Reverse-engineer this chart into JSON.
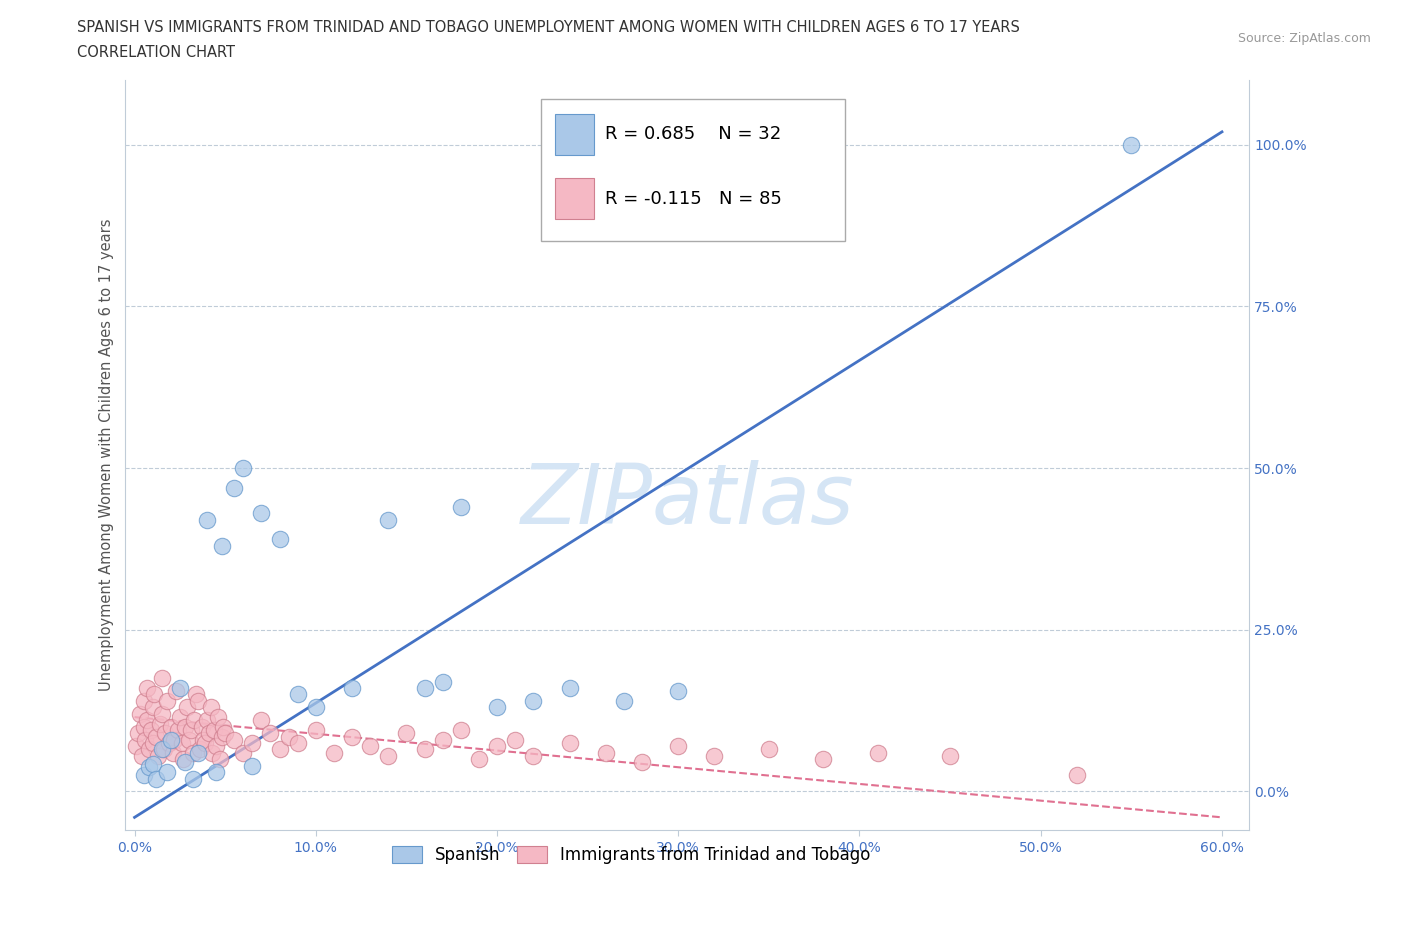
{
  "title_line1": "SPANISH VS IMMIGRANTS FROM TRINIDAD AND TOBAGO UNEMPLOYMENT AMONG WOMEN WITH CHILDREN AGES 6 TO 17 YEARS",
  "title_line2": "CORRELATION CHART",
  "source_text": "Source: ZipAtlas.com",
  "ylabel": "Unemployment Among Women with Children Ages 6 to 17 years",
  "xlim": [
    -0.005,
    0.615
  ],
  "ylim": [
    -0.06,
    1.1
  ],
  "xticks": [
    0.0,
    0.1,
    0.2,
    0.3,
    0.4,
    0.5,
    0.6
  ],
  "xticklabels": [
    "0.0%",
    "10.0%",
    "20.0%",
    "30.0%",
    "40.0%",
    "50.0%",
    "60.0%"
  ],
  "yticks": [
    0.0,
    0.25,
    0.5,
    0.75,
    1.0
  ],
  "yticklabels": [
    "0.0%",
    "25.0%",
    "50.0%",
    "75.0%",
    "100.0%"
  ],
  "blue_R": 0.685,
  "blue_N": 32,
  "pink_R": -0.115,
  "pink_N": 85,
  "blue_color": "#aac8e8",
  "blue_edge_color": "#6699cc",
  "blue_line_color": "#4472c4",
  "pink_color": "#f5b8c4",
  "pink_edge_color": "#d08090",
  "pink_line_color": "#e07090",
  "watermark_color": "#d5e5f5",
  "background_color": "#ffffff",
  "legend_label_blue": "Spanish",
  "legend_label_pink": "Immigrants from Trinidad and Tobago",
  "blue_trend_x": [
    0.0,
    0.6
  ],
  "blue_trend_y": [
    -0.04,
    1.02
  ],
  "pink_trend_x": [
    0.0,
    0.6
  ],
  "pink_trend_y": [
    0.115,
    -0.04
  ],
  "blue_x": [
    0.005,
    0.008,
    0.01,
    0.012,
    0.015,
    0.018,
    0.02,
    0.025,
    0.028,
    0.032,
    0.035,
    0.04,
    0.045,
    0.048,
    0.055,
    0.06,
    0.065,
    0.07,
    0.08,
    0.09,
    0.1,
    0.12,
    0.14,
    0.16,
    0.17,
    0.18,
    0.2,
    0.22,
    0.24,
    0.27,
    0.3,
    0.55
  ],
  "blue_y": [
    0.025,
    0.038,
    0.042,
    0.02,
    0.065,
    0.03,
    0.08,
    0.16,
    0.045,
    0.02,
    0.06,
    0.42,
    0.03,
    0.38,
    0.47,
    0.5,
    0.04,
    0.43,
    0.39,
    0.15,
    0.13,
    0.16,
    0.42,
    0.16,
    0.17,
    0.44,
    0.13,
    0.14,
    0.16,
    0.14,
    0.155,
    1.0
  ],
  "pink_x": [
    0.001,
    0.002,
    0.003,
    0.004,
    0.005,
    0.005,
    0.006,
    0.007,
    0.007,
    0.008,
    0.009,
    0.01,
    0.01,
    0.011,
    0.012,
    0.013,
    0.014,
    0.015,
    0.015,
    0.016,
    0.017,
    0.018,
    0.019,
    0.02,
    0.021,
    0.022,
    0.023,
    0.024,
    0.025,
    0.026,
    0.027,
    0.028,
    0.029,
    0.03,
    0.031,
    0.032,
    0.033,
    0.034,
    0.035,
    0.036,
    0.037,
    0.038,
    0.039,
    0.04,
    0.041,
    0.042,
    0.043,
    0.044,
    0.045,
    0.046,
    0.047,
    0.048,
    0.049,
    0.05,
    0.055,
    0.06,
    0.065,
    0.07,
    0.075,
    0.08,
    0.085,
    0.09,
    0.1,
    0.11,
    0.12,
    0.13,
    0.14,
    0.15,
    0.16,
    0.17,
    0.18,
    0.19,
    0.2,
    0.21,
    0.22,
    0.24,
    0.26,
    0.28,
    0.3,
    0.32,
    0.35,
    0.38,
    0.41,
    0.45,
    0.52
  ],
  "pink_y": [
    0.07,
    0.09,
    0.12,
    0.055,
    0.1,
    0.14,
    0.08,
    0.11,
    0.16,
    0.065,
    0.095,
    0.13,
    0.075,
    0.15,
    0.085,
    0.055,
    0.105,
    0.12,
    0.175,
    0.065,
    0.09,
    0.14,
    0.075,
    0.1,
    0.06,
    0.08,
    0.155,
    0.095,
    0.115,
    0.075,
    0.05,
    0.1,
    0.13,
    0.08,
    0.095,
    0.06,
    0.11,
    0.15,
    0.14,
    0.065,
    0.1,
    0.08,
    0.075,
    0.11,
    0.09,
    0.13,
    0.06,
    0.095,
    0.07,
    0.115,
    0.05,
    0.085,
    0.1,
    0.09,
    0.08,
    0.06,
    0.075,
    0.11,
    0.09,
    0.065,
    0.085,
    0.075,
    0.095,
    0.06,
    0.085,
    0.07,
    0.055,
    0.09,
    0.065,
    0.08,
    0.095,
    0.05,
    0.07,
    0.08,
    0.055,
    0.075,
    0.06,
    0.045,
    0.07,
    0.055,
    0.065,
    0.05,
    0.06,
    0.055,
    0.025
  ]
}
